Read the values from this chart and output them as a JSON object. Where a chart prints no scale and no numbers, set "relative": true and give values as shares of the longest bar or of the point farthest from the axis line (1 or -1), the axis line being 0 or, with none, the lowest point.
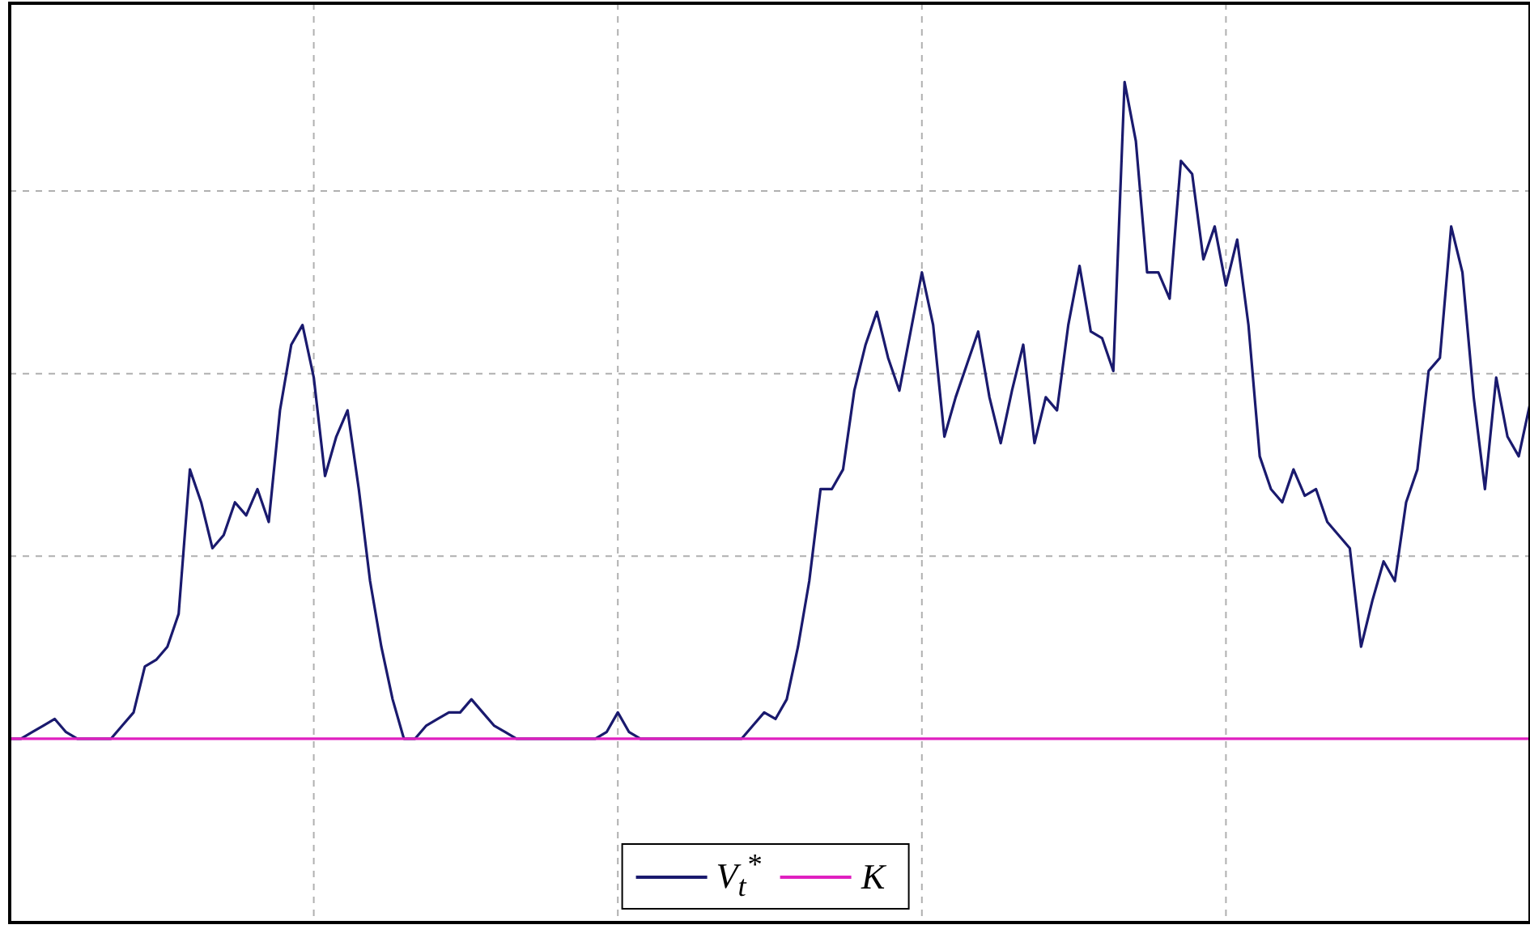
{
  "chart_data": {
    "type": "line",
    "relative": true,
    "grid": true,
    "legend": "bottom",
    "marker": "none",
    "line_style": "solid",
    "categories": [
      null,
      null,
      null,
      null,
      null,
      null,
      null,
      null,
      null,
      null,
      null,
      null,
      null,
      null,
      null,
      null,
      null,
      null,
      null,
      null,
      null,
      null,
      null,
      null,
      null,
      null,
      null,
      null,
      null,
      null,
      null,
      null,
      null,
      null,
      null,
      null,
      null,
      null,
      null,
      null,
      null,
      null,
      null,
      null,
      null,
      null,
      null,
      null,
      null,
      null,
      null,
      null,
      null,
      null,
      null,
      null,
      null,
      null,
      null,
      null,
      null,
      null,
      null,
      null,
      null,
      null,
      null,
      null,
      null,
      null,
      null,
      null,
      null,
      null,
      null,
      null,
      null,
      null,
      null,
      null,
      null,
      null,
      null,
      null,
      null,
      null,
      null,
      null,
      null,
      null,
      null,
      null,
      null,
      null,
      null,
      null,
      null,
      null,
      null,
      null,
      null,
      null,
      null,
      null,
      null,
      null,
      null,
      null,
      null,
      null,
      null,
      null,
      null,
      null,
      null,
      null,
      null,
      null,
      null,
      null,
      null,
      null,
      null,
      null,
      null,
      null,
      null,
      null,
      null,
      null,
      null,
      null,
      null,
      null,
      null,
      null
    ],
    "series": [
      {
        "name": "V$_{t}$$^{*}$",
        "color": "#1a1a6e",
        "values": [
          0,
          0,
          0.01,
          0.02,
          0.03,
          0.01,
          0,
          0,
          0,
          0,
          0.02,
          0.04,
          0.11,
          0.12,
          0.14,
          0.19,
          0.41,
          0.36,
          0.29,
          0.31,
          0.36,
          0.34,
          0.38,
          0.33,
          0.5,
          0.6,
          0.63,
          0.55,
          0.4,
          0.46,
          0.5,
          0.38,
          0.24,
          0.14,
          0.06,
          0,
          0,
          0.02,
          0.03,
          0.04,
          0.04,
          0.06,
          0.04,
          0.02,
          0.01,
          0,
          0,
          0,
          0,
          0,
          0,
          0,
          0,
          0.01,
          0.04,
          0.01,
          0,
          0,
          0,
          0,
          0,
          0,
          0,
          0,
          0,
          0,
          0.02,
          0.04,
          0.03,
          0.06,
          0.14,
          0.24,
          0.38,
          0.38,
          0.41,
          0.53,
          0.6,
          0.65,
          0.58,
          0.53,
          0.62,
          0.71,
          0.63,
          0.46,
          0.52,
          0.57,
          0.62,
          0.52,
          0.45,
          0.53,
          0.6,
          0.45,
          0.52,
          0.5,
          0.63,
          0.72,
          0.62,
          0.61,
          0.56,
          1,
          0.91,
          0.71,
          0.71,
          0.67,
          0.88,
          0.86,
          0.73,
          0.78,
          0.69,
          0.76,
          0.63,
          0.43,
          0.38,
          0.36,
          0.41,
          0.37,
          0.38,
          0.33,
          0.31,
          0.29,
          0.14,
          0.21,
          0.27,
          0.24,
          0.36,
          0.41,
          0.56,
          0.58,
          0.78,
          0.71,
          0.52,
          0.38,
          0.55,
          0.46,
          0.43,
          0.51
        ]
      }
    ],
    "ref_lines": [
      {
        "axis": "y",
        "value": 0,
        "label": "K",
        "color": "#e020c0",
        "line_style": "solid"
      }
    ]
  }
}
